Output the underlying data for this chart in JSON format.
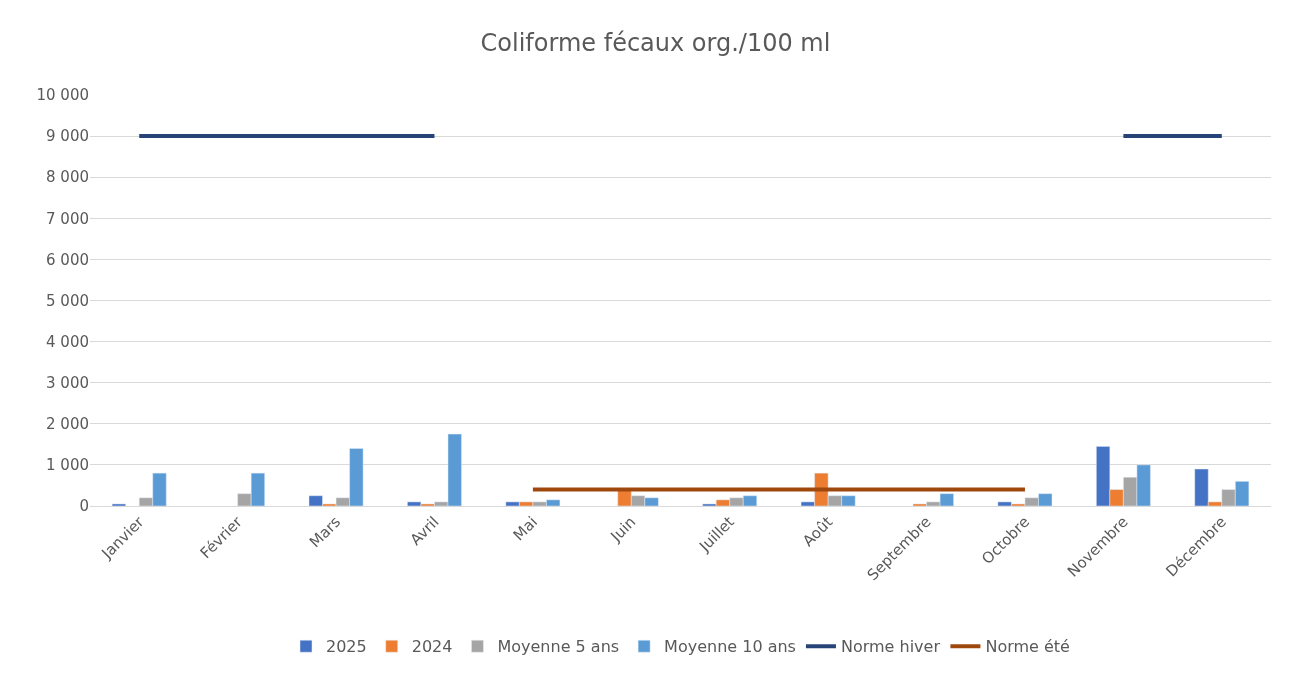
{
  "chart_data": {
    "type": "bar",
    "title": "Coliforme fécaux org./100 ml",
    "categories": [
      "Janvier",
      "Février",
      "Mars",
      "Avril",
      "Mai",
      "Juin",
      "Juillet",
      "Août",
      "Septembre",
      "Octobre",
      "Novembre",
      "Décembre"
    ],
    "series": [
      {
        "name": "2025",
        "color": "#4472c4",
        "values": [
          50,
          null,
          250,
          100,
          100,
          null,
          50,
          100,
          null,
          100,
          1450,
          900
        ]
      },
      {
        "name": "2024",
        "color": "#ed7d31",
        "values": [
          null,
          null,
          50,
          50,
          100,
          400,
          150,
          800,
          50,
          50,
          400,
          100
        ]
      },
      {
        "name": "Moyenne 5 ans",
        "color": "#a5a5a5",
        "values": [
          200,
          300,
          200,
          100,
          100,
          250,
          200,
          250,
          100,
          200,
          700,
          400
        ]
      },
      {
        "name": "Moyenne 10 ans",
        "color": "#5b9bd5",
        "values": [
          800,
          800,
          1400,
          1750,
          150,
          200,
          250,
          250,
          300,
          300,
          1000,
          600
        ]
      },
      {
        "name": "Norme hiver",
        "type": "line",
        "color": "#264478",
        "values": [
          9000,
          9000,
          9000,
          9000,
          null,
          null,
          null,
          null,
          null,
          null,
          9000,
          9000
        ]
      },
      {
        "name": "Norme été",
        "type": "line",
        "color": "#9e480e",
        "values": [
          null,
          null,
          null,
          null,
          400,
          400,
          400,
          400,
          400,
          400,
          null,
          null
        ]
      }
    ],
    "ylim": [
      0,
      10000
    ],
    "yticks": [
      0,
      {
        "value": 1000,
        "label": "1 000"
      },
      {
        "value": 2000,
        "label": "2 000"
      },
      {
        "value": 3000,
        "label": "3 000"
      },
      {
        "value": 4000,
        "label": "4 000"
      },
      {
        "value": 5000,
        "label": "5 000"
      },
      {
        "value": 6000,
        "label": "6 000"
      },
      {
        "value": 7000,
        "label": "7 000"
      },
      {
        "value": 8000,
        "label": "8 000"
      },
      {
        "value": 9000,
        "label": "9 000"
      },
      {
        "value": 10000,
        "label": "10 000"
      }
    ],
    "grid": "y",
    "legend": "bottom",
    "marker": "none",
    "line_style": "solid"
  }
}
